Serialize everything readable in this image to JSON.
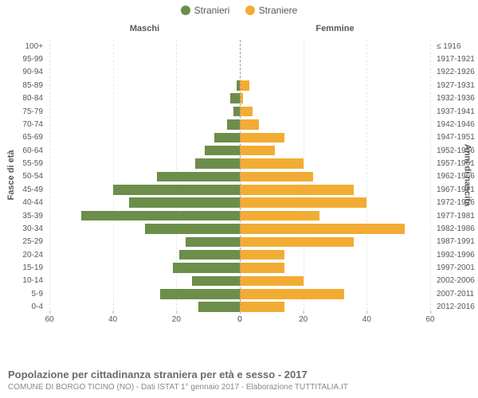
{
  "legend": {
    "male": {
      "label": "Stranieri",
      "color": "#6c8e4a"
    },
    "female": {
      "label": "Straniere",
      "color": "#f2ac33"
    }
  },
  "columns": {
    "male": "Maschi",
    "female": "Femmine"
  },
  "y_title_left": "Fasce di età",
  "y_title_right": "Anni di nascita",
  "x_axis": {
    "max": 60,
    "ticks_left": [
      60,
      40,
      20,
      0
    ],
    "ticks_right": [
      0,
      20,
      40,
      60
    ]
  },
  "grid_color": "#e6e6e6",
  "center_line_color": "#9a9a9a",
  "bg_color": "#ffffff",
  "label_color": "#575757",
  "label_fontsize": 10,
  "title_fontsize": 11,
  "rows": [
    {
      "age": "100+",
      "birth": "≤ 1916",
      "m": 0,
      "f": 0
    },
    {
      "age": "95-99",
      "birth": "1917-1921",
      "m": 0,
      "f": 0
    },
    {
      "age": "90-94",
      "birth": "1922-1926",
      "m": 0,
      "f": 0
    },
    {
      "age": "85-89",
      "birth": "1927-1931",
      "m": 1,
      "f": 3
    },
    {
      "age": "80-84",
      "birth": "1932-1936",
      "m": 3,
      "f": 1
    },
    {
      "age": "75-79",
      "birth": "1937-1941",
      "m": 2,
      "f": 4
    },
    {
      "age": "70-74",
      "birth": "1942-1946",
      "m": 4,
      "f": 6
    },
    {
      "age": "65-69",
      "birth": "1947-1951",
      "m": 8,
      "f": 14
    },
    {
      "age": "60-64",
      "birth": "1952-1956",
      "m": 11,
      "f": 11
    },
    {
      "age": "55-59",
      "birth": "1957-1961",
      "m": 14,
      "f": 20
    },
    {
      "age": "50-54",
      "birth": "1962-1966",
      "m": 26,
      "f": 23
    },
    {
      "age": "45-49",
      "birth": "1967-1971",
      "m": 40,
      "f": 36
    },
    {
      "age": "40-44",
      "birth": "1972-1976",
      "m": 35,
      "f": 40
    },
    {
      "age": "35-39",
      "birth": "1977-1981",
      "m": 50,
      "f": 25
    },
    {
      "age": "30-34",
      "birth": "1982-1986",
      "m": 30,
      "f": 52
    },
    {
      "age": "25-29",
      "birth": "1987-1991",
      "m": 17,
      "f": 36
    },
    {
      "age": "20-24",
      "birth": "1992-1996",
      "m": 19,
      "f": 14
    },
    {
      "age": "15-19",
      "birth": "1997-2001",
      "m": 21,
      "f": 14
    },
    {
      "age": "10-14",
      "birth": "2002-2006",
      "m": 15,
      "f": 20
    },
    {
      "age": "5-9",
      "birth": "2007-2011",
      "m": 25,
      "f": 33
    },
    {
      "age": "0-4",
      "birth": "2012-2016",
      "m": 13,
      "f": 14
    }
  ],
  "caption": {
    "line1": "Popolazione per cittadinanza straniera per età e sesso - 2017",
    "line2": "COMUNE DI BORGO TICINO (NO) - Dati ISTAT 1° gennaio 2017 - Elaborazione TUTTITALIA.IT"
  }
}
